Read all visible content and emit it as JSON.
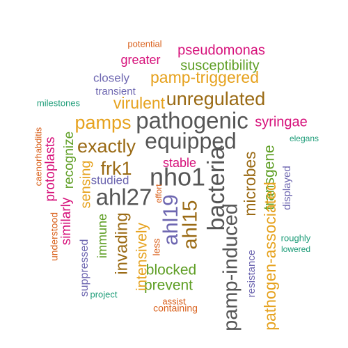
{
  "colors": {
    "gray": "#555555",
    "brown": "#9a6a14",
    "gold": "#e6a21e",
    "magenta": "#d6107a",
    "green": "#5e9e24",
    "purple": "#6d66b0",
    "orange": "#d9601b",
    "teal": "#1d9c78"
  },
  "words": [
    {
      "text": "potential",
      "color": "orange",
      "rotate": 0
    },
    {
      "text": "pseudomonas",
      "color": "magenta",
      "rotate": 0
    },
    {
      "text": "greater",
      "color": "magenta",
      "rotate": 0
    },
    {
      "text": "susceptibility",
      "color": "green",
      "rotate": 0
    },
    {
      "text": "closely",
      "color": "purple",
      "rotate": 0
    },
    {
      "text": "pamp-triggered",
      "color": "gold",
      "rotate": 0
    },
    {
      "text": "transient",
      "color": "purple",
      "rotate": 0
    },
    {
      "text": "milestones",
      "color": "teal",
      "rotate": 0
    },
    {
      "text": "unregulated",
      "color": "brown",
      "rotate": 0
    },
    {
      "text": "virulent",
      "color": "gold",
      "rotate": 0
    },
    {
      "text": "pamps",
      "color": "gold",
      "rotate": 0
    },
    {
      "text": "pathogenic",
      "color": "gray",
      "rotate": 0
    },
    {
      "text": "syringae",
      "color": "magenta",
      "rotate": 0
    },
    {
      "text": "equipped",
      "color": "gray",
      "rotate": 0
    },
    {
      "text": "exactly",
      "color": "brown",
      "rotate": 0
    },
    {
      "text": "elegans",
      "color": "teal",
      "rotate": 0
    },
    {
      "text": "stable",
      "color": "magenta",
      "rotate": 0
    },
    {
      "text": "frk1",
      "color": "brown",
      "rotate": 0
    },
    {
      "text": "nho1",
      "color": "gray",
      "rotate": 0
    },
    {
      "text": "ahl27",
      "color": "gray",
      "rotate": 0
    },
    {
      "text": "studied",
      "color": "purple",
      "rotate": 0
    },
    {
      "text": "blocked",
      "color": "green",
      "rotate": 0
    },
    {
      "text": "prevent",
      "color": "green",
      "rotate": 0
    },
    {
      "text": "assist",
      "color": "orange",
      "rotate": 0
    },
    {
      "text": "containing",
      "color": "orange",
      "rotate": 0
    },
    {
      "text": "project",
      "color": "teal",
      "rotate": 0
    },
    {
      "text": "roughly",
      "color": "teal",
      "rotate": 0
    },
    {
      "text": "lowered",
      "color": "teal",
      "rotate": 0
    },
    {
      "text": "caenorhabditis",
      "color": "orange",
      "rotate": -90
    },
    {
      "text": "protoplasts",
      "color": "magenta",
      "rotate": -90
    },
    {
      "text": "recognize",
      "color": "green",
      "rotate": -90
    },
    {
      "text": "understood",
      "color": "orange",
      "rotate": -90
    },
    {
      "text": "similarly",
      "color": "magenta",
      "rotate": -90
    },
    {
      "text": "sensing",
      "color": "gold",
      "rotate": -90
    },
    {
      "text": "suppressed",
      "color": "purple",
      "rotate": -90
    },
    {
      "text": "immune",
      "color": "green",
      "rotate": -90
    },
    {
      "text": "invading",
      "color": "brown",
      "rotate": -90
    },
    {
      "text": "intensively",
      "color": "gold",
      "rotate": -90
    },
    {
      "text": "effort",
      "color": "orange",
      "rotate": -90
    },
    {
      "text": "ahl19",
      "color": "purple",
      "rotate": -90
    },
    {
      "text": "ahl15",
      "color": "brown",
      "rotate": -90
    },
    {
      "text": "less",
      "color": "orange",
      "rotate": -90
    },
    {
      "text": "bacteria",
      "color": "gray",
      "rotate": -90
    },
    {
      "text": "pamp-induced",
      "color": "gray",
      "rotate": -90
    },
    {
      "text": "microbes",
      "color": "brown",
      "rotate": -90
    },
    {
      "text": "resistance",
      "color": "purple",
      "rotate": -90
    },
    {
      "text": "transgene",
      "color": "green",
      "rotate": -90
    },
    {
      "text": "pathogen-associated",
      "color": "gold",
      "rotate": -90
    },
    {
      "text": "displayed",
      "color": "purple",
      "rotate": -90
    }
  ]
}
